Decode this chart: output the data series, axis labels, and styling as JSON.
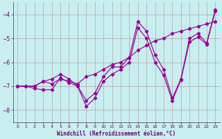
{
  "xlabel": "Windchill (Refroidissement éolien,°C)",
  "bg_color": "#c8eef0",
  "grid_color": "#aaaaaa",
  "line_color": "#990099",
  "marker_color": "#990099",
  "xlim": [
    -0.5,
    23.5
  ],
  "ylim": [
    -8.5,
    -3.5
  ],
  "yticks": [
    -8,
    -7,
    -6,
    -5,
    -4
  ],
  "xticks": [
    0,
    1,
    2,
    3,
    4,
    5,
    6,
    7,
    8,
    9,
    10,
    11,
    12,
    13,
    14,
    15,
    16,
    17,
    18,
    19,
    20,
    21,
    22,
    23
  ],
  "line1_x": [
    0,
    1,
    2,
    3,
    4,
    5,
    6,
    7,
    8,
    9,
    10,
    11,
    12,
    13,
    14,
    15,
    16,
    17,
    18,
    19,
    20,
    21,
    22,
    23
  ],
  "line1_y": [
    -7.0,
    -7.0,
    -7.0,
    -6.8,
    -6.7,
    -6.5,
    -6.7,
    -7.0,
    -7.6,
    -7.3,
    -6.6,
    -6.2,
    -6.2,
    -5.8,
    -4.3,
    -4.7,
    -5.7,
    -6.3,
    -7.5,
    -6.7,
    -5.0,
    -4.8,
    -5.2,
    -3.8
  ],
  "line2_x": [
    0,
    1,
    2,
    3,
    4,
    5,
    6,
    7,
    8,
    9,
    10,
    11,
    12,
    13,
    14,
    15,
    16,
    17,
    18,
    19,
    20,
    21,
    22,
    23
  ],
  "line2_y": [
    -7.0,
    -7.0,
    -7.0,
    -6.8,
    -6.9,
    -6.7,
    -6.8,
    -6.9,
    -6.6,
    -6.5,
    -6.3,
    -6.1,
    -6.0,
    -5.8,
    -5.5,
    -5.3,
    -5.1,
    -5.0,
    -4.8,
    -4.7,
    -4.6,
    -4.5,
    -4.4,
    -4.3
  ],
  "line3_x": [
    0,
    1,
    2,
    3,
    4,
    5,
    6,
    7,
    8,
    9,
    10,
    11,
    12,
    13,
    14,
    15,
    16,
    17,
    18,
    19,
    20,
    21,
    22,
    23
  ],
  "line3_y": [
    -7.0,
    -7.0,
    -7.1,
    -7.15,
    -7.15,
    -6.65,
    -6.85,
    -7.0,
    -7.85,
    -7.5,
    -6.8,
    -6.5,
    -6.3,
    -6.0,
    -4.55,
    -5.0,
    -6.0,
    -6.55,
    -7.6,
    -6.75,
    -5.15,
    -4.95,
    -5.25,
    -3.85
  ]
}
